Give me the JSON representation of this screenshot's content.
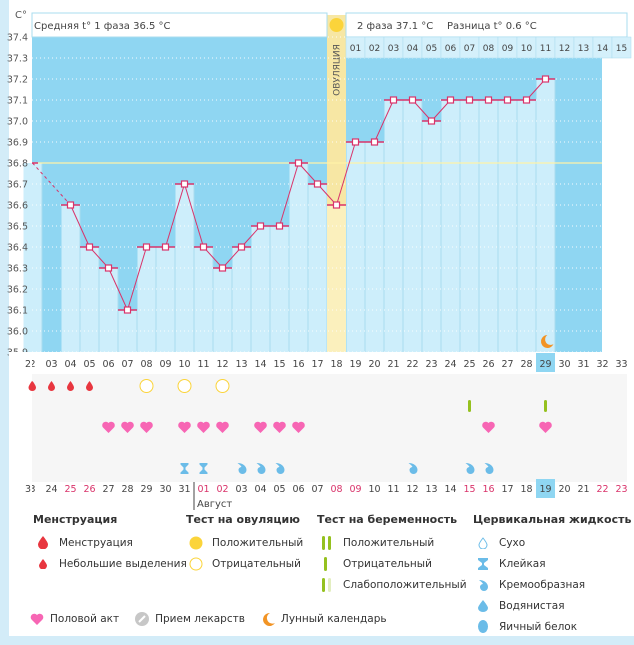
{
  "header": {
    "unit": "C°",
    "phase1_label": "Средняя t° 1 фаза 36.5 °C",
    "phase2_label": "2 фаза 37.1 °C",
    "diff_label": "Разница t° 0.6 °C",
    "ovulation_label": "ОВУЛЯЦИЯ"
  },
  "chart_data": {
    "type": "bar",
    "title": "",
    "ylabel": "C°",
    "ylim": [
      35.9,
      37.4
    ],
    "yticks": [
      "37.4",
      "37.3",
      "37.2",
      "37.1",
      "37.0",
      "36.9",
      "36.8",
      "36.7",
      "36.6",
      "36.5",
      "36.4",
      "36.3",
      "36.2",
      "36.1",
      "36.0",
      "35.9"
    ],
    "cycle_days": [
      "2",
      "03",
      "04",
      "05",
      "06",
      "07",
      "08",
      "09",
      "10",
      "11",
      "12",
      "13",
      "14",
      "15",
      "16",
      "17",
      "18",
      "19",
      "20",
      "21",
      "22",
      "23",
      "24",
      "25",
      "26",
      "27",
      "28",
      "29",
      "30",
      "31",
      "32",
      "33"
    ],
    "phase2_days": [
      "01",
      "02",
      "03",
      "04",
      "05",
      "06",
      "07",
      "08",
      "09",
      "10",
      "11",
      "12",
      "13",
      "14",
      "15"
    ],
    "calendar_dates": [
      "3",
      "24",
      "25",
      "26",
      "27",
      "28",
      "29",
      "30",
      "31",
      "01",
      "02",
      "03",
      "04",
      "05",
      "06",
      "07",
      "08",
      "09",
      "10",
      "11",
      "12",
      "13",
      "14",
      "15",
      "16",
      "17",
      "18",
      "19",
      "20",
      "21",
      "22",
      "23"
    ],
    "calendar_red": [
      "25",
      "26",
      "01",
      "02",
      "08",
      "09",
      "15",
      "16",
      "22",
      "23"
    ],
    "month_label": "Август",
    "current_day": "29",
    "current_date": "19",
    "ovulation_day": "18",
    "coverline": 36.8,
    "temperatures": [
      36.8,
      null,
      36.6,
      36.4,
      36.3,
      36.1,
      36.4,
      36.4,
      36.7,
      36.4,
      36.3,
      36.4,
      36.5,
      36.5,
      36.8,
      36.7,
      36.6,
      36.9,
      36.9,
      37.1,
      37.1,
      37.0,
      37.1,
      37.1,
      37.1,
      37.1,
      37.1,
      37.2,
      null,
      null,
      null,
      null
    ],
    "menstruation": {
      "03": "spotting",
      "04": "spotting",
      "05": "spotting"
    },
    "ovulation_tests": {
      "08": "negative",
      "10": "negative",
      "12": "negative",
      "18": "positive"
    },
    "pregnancy_tests": {
      "25": "negative",
      "29": "negative"
    },
    "intercourse": [
      "06",
      "07",
      "08",
      "10",
      "11",
      "12",
      "14",
      "15",
      "16",
      "26",
      "29"
    ],
    "cervical_fluid": {
      "10": "sticky",
      "11": "sticky",
      "13": "creamy",
      "14": "creamy",
      "15": "creamy",
      "22": "creamy",
      "25": "creamy",
      "26": "creamy"
    },
    "moon_day": "29"
  },
  "legend": {
    "menstruation": {
      "title": "Менструация",
      "items": [
        "Менструация",
        "Небольшие выделения"
      ]
    },
    "ovulation_test": {
      "title": "Тест на овуляцию",
      "items": [
        "Положительный",
        "Отрицательный"
      ]
    },
    "pregnancy_test": {
      "title": "Тест на беременность",
      "items": [
        "Положительный",
        "Отрицательный",
        "Слабоположительный"
      ]
    },
    "cervical": {
      "title": "Цервикальная жидкость",
      "items": [
        "Сухо",
        "Клейкая",
        "Кремообразная",
        "Водянистая",
        "Яичный белок"
      ]
    },
    "bottom": [
      "Половой акт",
      "Прием лекарств",
      "Лунный календарь"
    ]
  },
  "colors": {
    "sky": "#8fd6f2",
    "bar": "#cdeefb",
    "line": "#d9336a",
    "ovulation": "#fbf0bd",
    "sun": "#fbd43a",
    "heart": "#f766b4",
    "drop": "#e8363f",
    "preg": "#95c11f",
    "cervical": "#6bbce8",
    "moon": "#f29425",
    "red_date": "#d9336a"
  }
}
